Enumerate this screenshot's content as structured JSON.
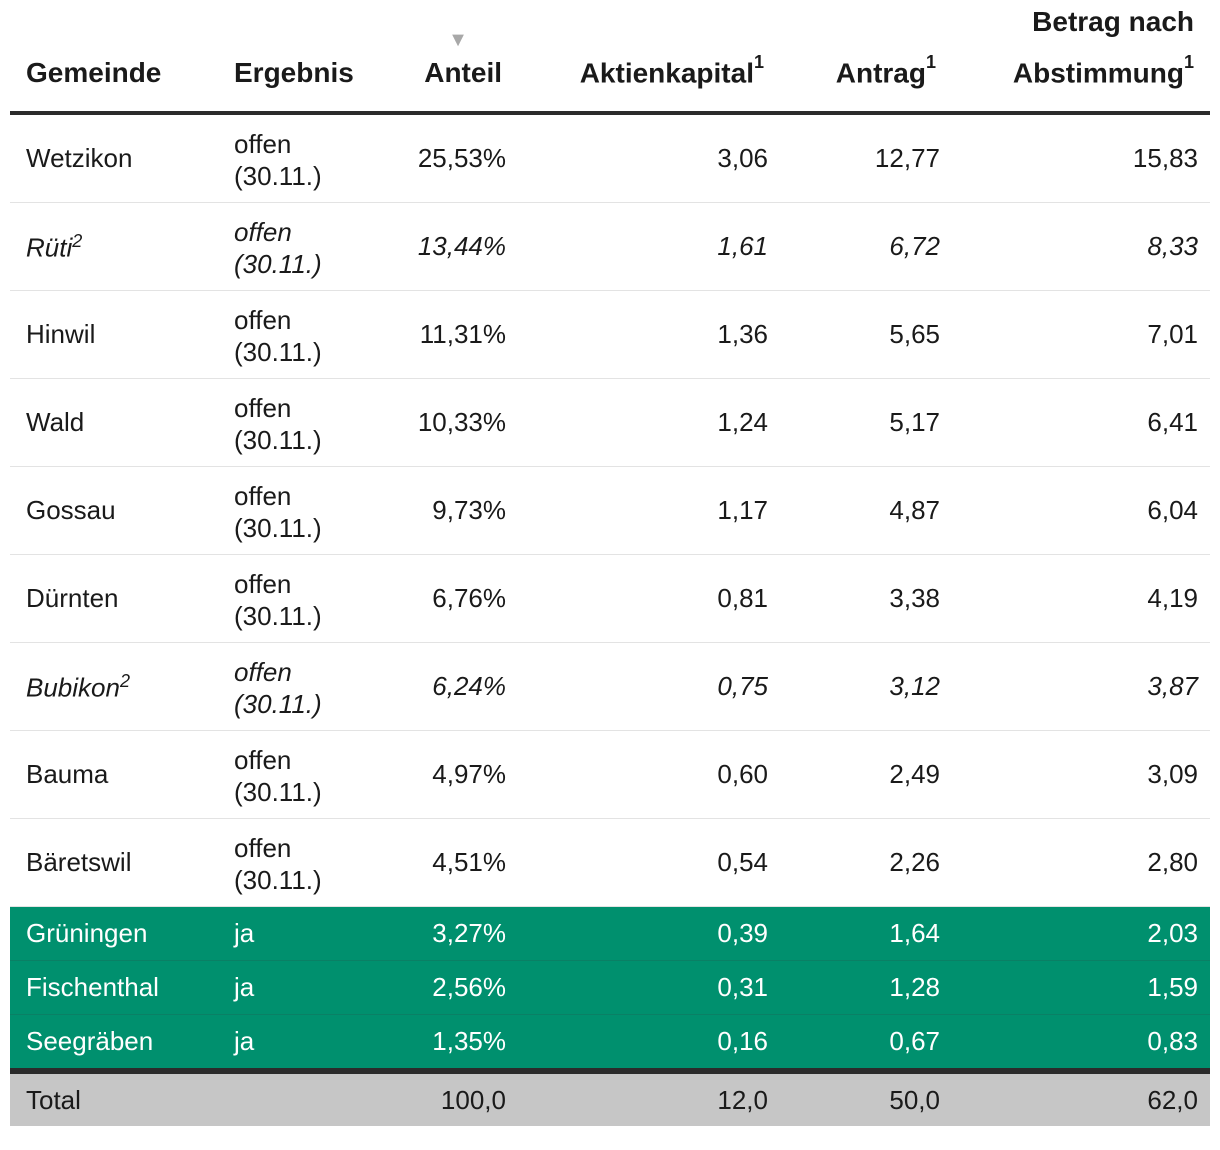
{
  "table": {
    "headers": {
      "gemeinde": "Gemeinde",
      "ergebnis": "Ergebnis",
      "anteil": "Anteil",
      "aktienkapital": "Aktienkapital",
      "aktienkapital_sup": "1",
      "antrag": "Antrag",
      "antrag_sup": "1",
      "betrag_line1": "Betrag nach",
      "betrag_line2": "Abstimmung",
      "betrag_sup": "1",
      "sort_icon": "sort-descending-triangle"
    },
    "rows": [
      {
        "gemeinde": "Wetzikon",
        "sup": "",
        "ergebnis_1": "offen",
        "ergebnis_2": "(30.11.)",
        "anteil": "25,53%",
        "aktienkapital": "3,06",
        "antrag": "12,77",
        "betrag": "15,83",
        "italic": false
      },
      {
        "gemeinde": "Rüti",
        "sup": "2",
        "ergebnis_1": "offen",
        "ergebnis_2": "(30.11.)",
        "anteil": "13,44%",
        "aktienkapital": "1,61",
        "antrag": "6,72",
        "betrag": "8,33",
        "italic": true
      },
      {
        "gemeinde": "Hinwil",
        "sup": "",
        "ergebnis_1": "offen",
        "ergebnis_2": "(30.11.)",
        "anteil": "11,31%",
        "aktienkapital": "1,36",
        "antrag": "5,65",
        "betrag": "7,01",
        "italic": false
      },
      {
        "gemeinde": "Wald",
        "sup": "",
        "ergebnis_1": "offen",
        "ergebnis_2": "(30.11.)",
        "anteil": "10,33%",
        "aktienkapital": "1,24",
        "antrag": "5,17",
        "betrag": "6,41",
        "italic": false
      },
      {
        "gemeinde": "Gossau",
        "sup": "",
        "ergebnis_1": "offen",
        "ergebnis_2": "(30.11.)",
        "anteil": "9,73%",
        "aktienkapital": "1,17",
        "antrag": "4,87",
        "betrag": "6,04",
        "italic": false
      },
      {
        "gemeinde": "Dürnten",
        "sup": "",
        "ergebnis_1": "offen",
        "ergebnis_2": "(30.11.)",
        "anteil": "6,76%",
        "aktienkapital": "0,81",
        "antrag": "3,38",
        "betrag": "4,19",
        "italic": false
      },
      {
        "gemeinde": "Bubikon",
        "sup": "2",
        "ergebnis_1": "offen",
        "ergebnis_2": "(30.11.)",
        "anteil": "6,24%",
        "aktienkapital": "0,75",
        "antrag": "3,12",
        "betrag": "3,87",
        "italic": true
      },
      {
        "gemeinde": "Bauma",
        "sup": "",
        "ergebnis_1": "offen",
        "ergebnis_2": "(30.11.)",
        "anteil": "4,97%",
        "aktienkapital": "0,60",
        "antrag": "2,49",
        "betrag": "3,09",
        "italic": false
      },
      {
        "gemeinde": "Bäretswil",
        "sup": "",
        "ergebnis_1": "offen",
        "ergebnis_2": "(30.11.)",
        "anteil": "4,51%",
        "aktienkapital": "0,54",
        "antrag": "2,26",
        "betrag": "2,80",
        "italic": false
      }
    ],
    "approved_rows": [
      {
        "gemeinde": "Grüningen",
        "ergebnis": "ja",
        "anteil": "3,27%",
        "aktienkapital": "0,39",
        "antrag": "1,64",
        "betrag": "2,03"
      },
      {
        "gemeinde": "Fischenthal",
        "ergebnis": "ja",
        "anteil": "2,56%",
        "aktienkapital": "0,31",
        "antrag": "1,28",
        "betrag": "1,59"
      },
      {
        "gemeinde": "Seegräben",
        "ergebnis": "ja",
        "anteil": "1,35%",
        "aktienkapital": "0,16",
        "antrag": "0,67",
        "betrag": "0,83"
      }
    ],
    "total": {
      "label": "Total",
      "anteil": "100,0",
      "aktienkapital": "12,0",
      "antrag": "50,0",
      "betrag": "62,0"
    },
    "colors": {
      "approved_row": "#00906e",
      "total_row": "#c6c6c6",
      "rule": "#2b2b2b"
    }
  }
}
